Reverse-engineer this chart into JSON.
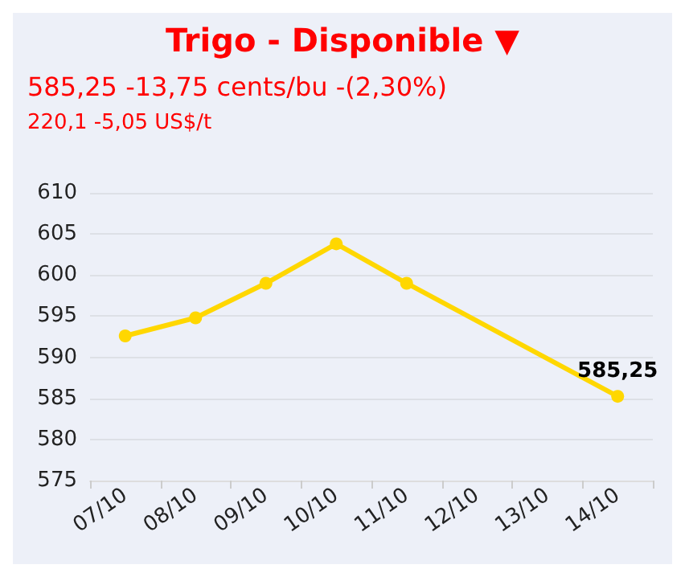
{
  "chart_data": {
    "type": "line",
    "title": "Trigo - Disponible ▼",
    "subtitle": "585,25 -13,75 cents/bu -(2,30%)",
    "annotations": [
      "220,1 -5,05 US$/t"
    ],
    "categories": [
      "07/10",
      "08/10",
      "09/10",
      "10/10",
      "11/10",
      "12/10",
      "13/10",
      "14/10"
    ],
    "series": [
      {
        "color": "#ffd700",
        "values": [
          592.6,
          594.8,
          599,
          603.8,
          599,
          null,
          null,
          585.25
        ],
        "value_labels": [
          null,
          null,
          null,
          null,
          null,
          null,
          null,
          "585,25"
        ]
      }
    ],
    "ylim": [
      575,
      610
    ],
    "yticks": [
      575,
      580,
      585,
      590,
      595,
      600,
      605,
      610
    ],
    "grid": "y",
    "marker": "circle",
    "line_style": "solid"
  }
}
